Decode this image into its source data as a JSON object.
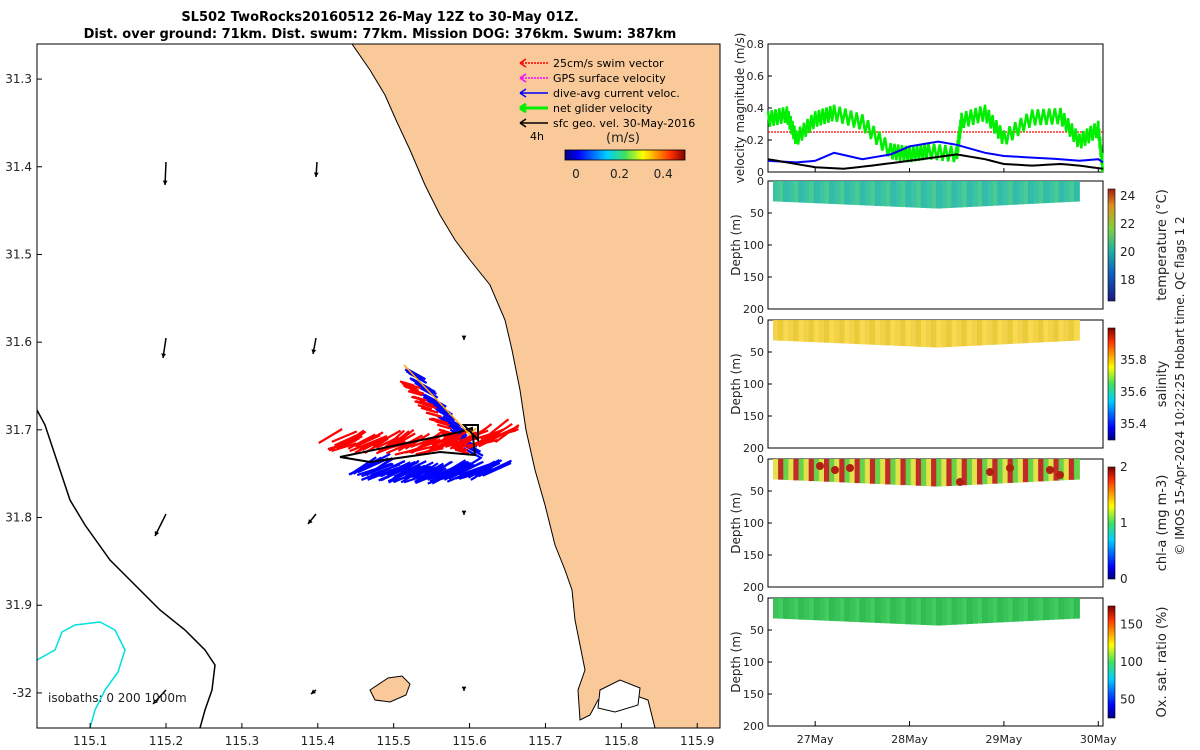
{
  "header": {
    "title_line1": "SL502 TwoRocks20160512 26-May 12Z to 30-May 01Z.",
    "title_line2": "Dist. over ground: 71km. Dist. swum: 77km. Mission DOG: 376km. Swum: 387km"
  },
  "colors": {
    "land": "#f9c99a",
    "swim": "#ff0000",
    "gps": "#ff00ff",
    "dive_avg": "#0000ff",
    "net": "#00ee00",
    "geo": "#000000",
    "isobath": "#00e0e0"
  },
  "map": {
    "xlim": [
      115.03,
      115.93
    ],
    "ylim": [
      -32.04,
      -31.26
    ],
    "xticks": [
      "115.1",
      "115.2",
      "115.3",
      "115.4",
      "115.5",
      "115.6",
      "115.7",
      "115.8",
      "115.9"
    ],
    "yticks": [
      "31.3",
      "31.4",
      "31.5",
      "31.6",
      "31.7",
      "31.8",
      "31.9",
      "-32"
    ],
    "isobaths_label": "isobaths: 0   200  1000m",
    "legend": [
      {
        "label": "25cm/s swim vector",
        "color": "#ff0000"
      },
      {
        "label": "GPS surface velocity",
        "color": "#ff00ff"
      },
      {
        "label": "dive-avg current veloc.",
        "color": "#0000ff"
      },
      {
        "label": "net glider velocity",
        "color": "#00ee00"
      },
      {
        "label": "sfc geo. vel. 30-May-2016",
        "color": "#000000"
      }
    ],
    "legend_4h": "4h",
    "colorbar_label": "(m/s)",
    "colorbar_ticks": [
      "0",
      "0.2",
      "0.4"
    ],
    "colorbar_range": [
      -0.05,
      0.5
    ]
  },
  "chart_data": [
    {
      "type": "line",
      "title": "",
      "ylabel": "velocity magnitude (m/s)",
      "ylim": [
        0,
        0.8
      ],
      "yticks": [
        "0",
        "0.2",
        "0.4",
        "0.6",
        "0.8"
      ],
      "x_range_days": [
        26.5,
        30.05
      ],
      "series": [
        {
          "name": "25cm/s swim vector",
          "color": "#ff0000",
          "x": [
            26.5,
            30.05
          ],
          "values": [
            0.25,
            0.25
          ]
        },
        {
          "name": "net glider velocity",
          "color": "#00ee00",
          "x": [
            26.5,
            26.7,
            26.8,
            27.0,
            27.2,
            27.5,
            27.8,
            28.0,
            28.2,
            28.5,
            28.55,
            28.8,
            29.0,
            29.3,
            29.6,
            29.8,
            30.0,
            30.05
          ],
          "values": [
            0.34,
            0.37,
            0.22,
            0.34,
            0.38,
            0.32,
            0.14,
            0.12,
            0.14,
            0.12,
            0.33,
            0.38,
            0.22,
            0.35,
            0.36,
            0.2,
            0.28,
            0.03
          ]
        },
        {
          "name": "dive-avg current veloc.",
          "color": "#0000ff",
          "x": [
            26.5,
            26.8,
            27.0,
            27.2,
            27.5,
            27.8,
            28.0,
            28.3,
            28.5,
            28.8,
            29.0,
            29.3,
            29.6,
            29.8,
            30.0,
            30.05
          ],
          "values": [
            0.07,
            0.06,
            0.07,
            0.12,
            0.08,
            0.11,
            0.16,
            0.19,
            0.17,
            0.12,
            0.1,
            0.09,
            0.08,
            0.07,
            0.08,
            0.06
          ]
        },
        {
          "name": "sfc geo. vel. 30-May-2016",
          "color": "#000000",
          "x": [
            26.5,
            26.8,
            27.0,
            27.3,
            27.6,
            28.0,
            28.5,
            28.8,
            29.0,
            29.3,
            29.6,
            29.8,
            30.05
          ],
          "values": [
            0.08,
            0.05,
            0.03,
            0.02,
            0.04,
            0.07,
            0.11,
            0.08,
            0.05,
            0.04,
            0.05,
            0.04,
            0.02
          ]
        }
      ]
    },
    {
      "type": "heatmap",
      "ylabel": "Depth (m)",
      "clabel": "temperature (°C)",
      "ylim": [
        0,
        200
      ],
      "yticks": [
        "0",
        "50",
        "100",
        "150",
        "200"
      ],
      "clim": [
        16.5,
        24.5
      ],
      "cticks": [
        "18",
        "20",
        "22",
        "24"
      ],
      "value_profile": [
        20.5,
        20.8,
        20.7,
        20.9,
        21.0,
        20.8,
        20.6,
        20.4,
        20.3
      ]
    },
    {
      "type": "heatmap",
      "ylabel": "Depth (m)",
      "clabel": "salinity",
      "ylim": [
        0,
        200
      ],
      "yticks": [
        "0",
        "50",
        "100",
        "150",
        "200"
      ],
      "clim": [
        35.3,
        36.0
      ],
      "cticks": [
        "35.4",
        "35.6",
        "35.8"
      ],
      "value_profile": [
        35.85,
        35.87,
        35.88,
        35.84,
        35.83,
        35.85,
        35.86,
        35.84,
        35.82
      ]
    },
    {
      "type": "heatmap",
      "ylabel": "Depth (m)",
      "clabel": "chl-a (mg m-3)",
      "ylim": [
        0,
        200
      ],
      "yticks": [
        "0",
        "50",
        "100",
        "150",
        "200"
      ],
      "clim": [
        0,
        2
      ],
      "cticks": [
        "0",
        "1",
        "2"
      ],
      "value_profile": [
        1.4,
        1.7,
        1.3,
        1.2,
        1.1,
        1.3,
        1.5,
        1.4,
        1.2
      ]
    },
    {
      "type": "heatmap",
      "ylabel": "Depth (m)",
      "clabel": "Ox. sat. ratio (%)",
      "ylim": [
        0,
        200
      ],
      "yticks": [
        "0",
        "50",
        "100",
        "150",
        "200"
      ],
      "clim": [
        25,
        175
      ],
      "cticks": [
        "50",
        "100",
        "150"
      ],
      "value_profile": [
        108,
        107,
        106,
        105,
        106,
        107,
        108,
        107,
        106
      ]
    }
  ],
  "time_axis": {
    "labels": [
      "27May",
      "28May",
      "29May",
      "30May"
    ],
    "days": [
      27,
      28,
      29,
      30
    ]
  },
  "credit": "© IMOS 15-Apr-2024 10:22:25 Hobart time. QC flags 1  2"
}
